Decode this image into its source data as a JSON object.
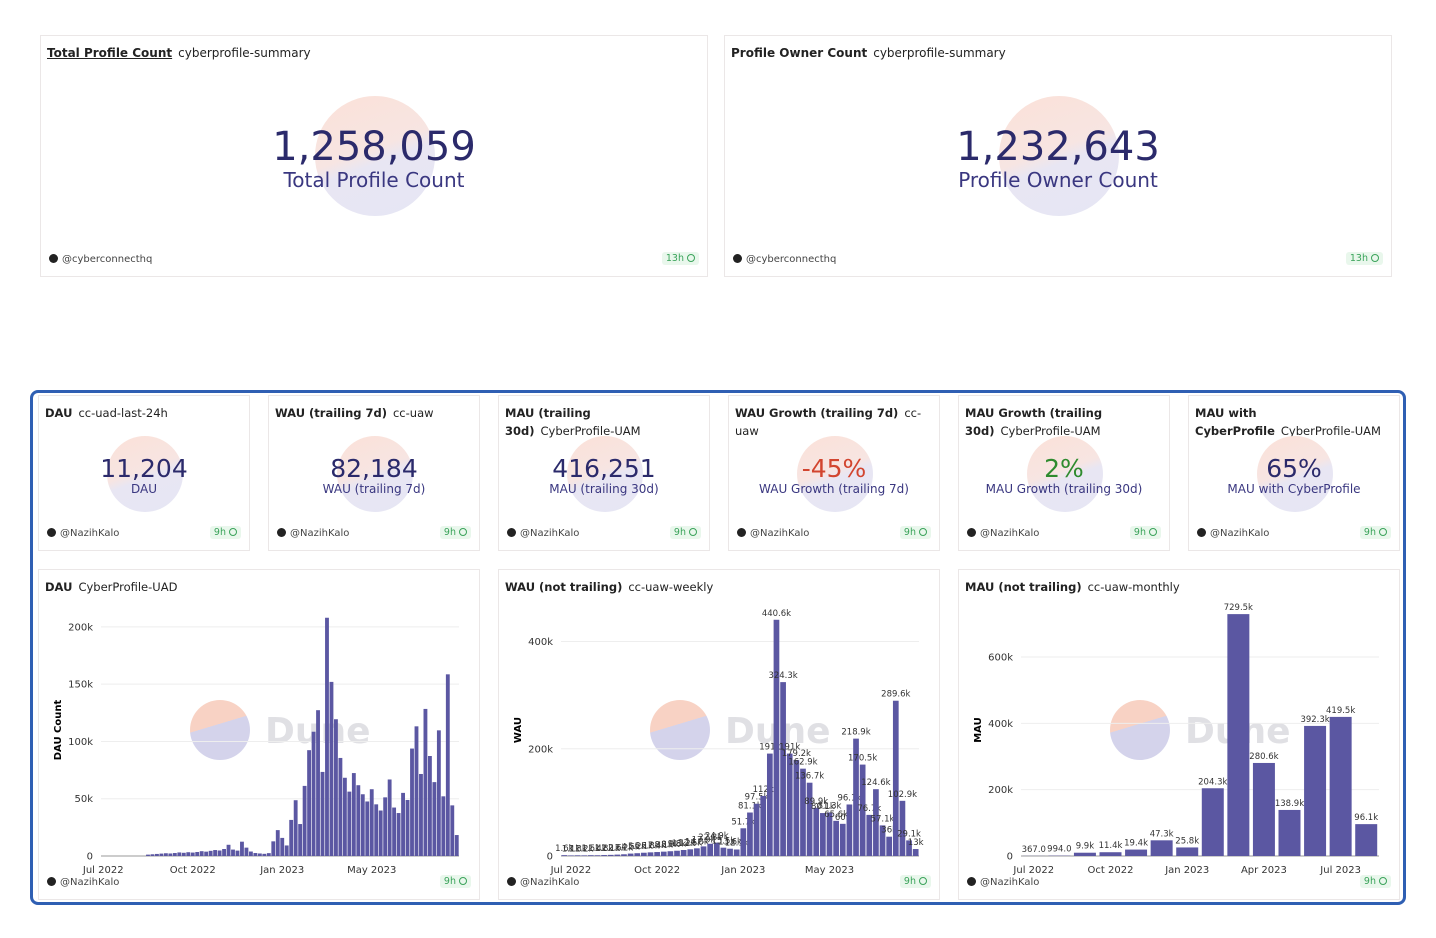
{
  "top_counters": [
    {
      "title": "Total Profile Count",
      "query": "cyberprofile-summary",
      "value": "1,258,059",
      "label": "Total Profile Count",
      "value_color": "#2b2a6b",
      "author": "@cyberconnecthq",
      "age": "13h"
    },
    {
      "title": "Profile Owner Count",
      "query": "cyberprofile-summary",
      "value": "1,232,643",
      "label": "Profile Owner Count",
      "value_color": "#2b2a6b",
      "author": "@cyberconnecthq",
      "age": "13h"
    }
  ],
  "counters": [
    {
      "title": "DAU",
      "query": "cc-uad-last-24h",
      "value": "11,204",
      "label": "DAU",
      "value_color": "#2b2a6b",
      "author": "@NazihKalo",
      "age": "9h"
    },
    {
      "title": "WAU (trailing 7d)",
      "query": "cc-uaw",
      "value": "82,184",
      "label": "WAU (trailing 7d)",
      "value_color": "#2b2a6b",
      "author": "@NazihKalo",
      "age": "9h"
    },
    {
      "title": "MAU (trailing 30d)",
      "query": "CyberProfile-UAM",
      "value": "416,251",
      "label": "MAU (trailing 30d)",
      "value_color": "#2b2a6b",
      "author": "@NazihKalo",
      "age": "9h"
    },
    {
      "title": "WAU Growth (trailing 7d)",
      "query": "cc-uaw",
      "value": "-45%",
      "label": "WAU Growth (trailing 7d)",
      "value_color": "#d2452f",
      "author": "@NazihKalo",
      "age": "9h"
    },
    {
      "title": "MAU Growth (trailing 30d)",
      "query": "CyberProfile-UAM",
      "value": "2%",
      "label": "MAU Growth (trailing 30d)",
      "value_color": "#2e8b2e",
      "author": "@NazihKalo",
      "age": "9h"
    },
    {
      "title": "MAU with CyberProfile",
      "query": "CyberProfile-UAM",
      "value": "65%",
      "label": "MAU with CyberProfile",
      "value_color": "#2b2a6b",
      "author": "@NazihKalo",
      "age": "9h"
    }
  ],
  "watermark": "Dune",
  "chart_data": [
    {
      "type": "bar",
      "title": "DAU",
      "query": "CyberProfile-UAD",
      "y_label": "DAU Count",
      "color": "#5b57a2",
      "author": "@NazihKalo",
      "age": "9h",
      "categories": [
        "Jul 2022",
        null,
        null,
        null,
        null,
        null,
        null,
        null,
        null,
        null,
        null,
        null,
        null,
        null,
        null,
        null,
        null,
        null,
        null,
        null,
        "Oct 2022",
        null,
        null,
        null,
        null,
        null,
        null,
        null,
        null,
        null,
        null,
        null,
        null,
        null,
        null,
        null,
        null,
        null,
        null,
        null,
        "Jan 2023",
        null,
        null,
        null,
        null,
        null,
        null,
        null,
        null,
        null,
        null,
        null,
        null,
        null,
        null,
        null,
        null,
        null,
        null,
        null,
        "May 2023",
        null,
        null,
        null,
        null,
        null,
        null,
        null,
        null,
        null,
        null,
        null,
        null,
        null,
        null,
        null,
        null,
        null,
        null,
        null
      ],
      "values": [
        0,
        0,
        0,
        0,
        0,
        0,
        0,
        0,
        0,
        0,
        1200,
        1500,
        1800,
        2100,
        2400,
        2200,
        2600,
        3100,
        2800,
        3300,
        3000,
        3500,
        4200,
        3800,
        4500,
        5200,
        4800,
        6100,
        9800,
        5600,
        4700,
        12500,
        7300,
        3900,
        2600,
        2200,
        1900,
        2500,
        12800,
        22600,
        15800,
        9200,
        31500,
        48700,
        27900,
        61200,
        92400,
        108500,
        127300,
        73400,
        208000,
        152000,
        119400,
        85600,
        68300,
        56200,
        72400,
        61800,
        53900,
        47600,
        58300,
        45100,
        39700,
        51200,
        66800,
        42300,
        37500,
        55100,
        48900,
        93800,
        113200,
        71600,
        128400,
        87300,
        64500,
        109700,
        52100,
        158600,
        44200,
        18300
      ],
      "ylim": [
        0,
        220000
      ],
      "yticks": [
        0,
        {
          "value": 50000,
          "label": "50k"
        },
        {
          "value": 100000,
          "label": "100k"
        },
        {
          "value": 150000,
          "label": "150k"
        },
        {
          "value": 200000,
          "label": "200k"
        }
      ]
    },
    {
      "type": "bar",
      "title": "WAU (not trailing)",
      "query": "cc-uaw-weekly",
      "y_label": "WAU",
      "color": "#5b57a2",
      "author": "@NazihKalo",
      "age": "9h",
      "categories": [
        null,
        "Jul 2022",
        null,
        null,
        null,
        null,
        null,
        null,
        null,
        null,
        null,
        null,
        null,
        null,
        "Oct 2022",
        null,
        null,
        null,
        null,
        null,
        null,
        null,
        null,
        null,
        null,
        null,
        null,
        "Jan 2023",
        null,
        null,
        null,
        null,
        null,
        null,
        null,
        null,
        null,
        null,
        null,
        null,
        "May 2023",
        null,
        null,
        null,
        null,
        null,
        null,
        null,
        null,
        null,
        null,
        null,
        null,
        null
      ],
      "values": [
        1600,
        1100,
        1300,
        1200,
        1500,
        1400,
        1800,
        2100,
        2600,
        3200,
        4500,
        5200,
        6100,
        6800,
        7400,
        8100,
        8900,
        9800,
        11200,
        12500,
        14300,
        17900,
        22800,
        24900,
        15500,
        13600,
        12100,
        51700,
        81100,
        97500,
        112000,
        191000,
        440600,
        324300,
        191000,
        179200,
        162900,
        136700,
        89900,
        80100,
        81300,
        65600,
        60000,
        96100,
        218900,
        170500,
        76700,
        124600,
        57100,
        36000,
        289600,
        102900,
        29100,
        13000
      ],
      "value_labels": [
        "1.6k",
        "1.1k",
        "1.3k",
        "1.2k",
        "1.5k",
        "1.4k",
        "1.8k",
        "2.1k",
        "2.6k",
        "3.2k",
        "4.5k",
        "5.2k",
        "6.1k",
        "6.8k",
        "7.4k",
        "8.1k",
        "8.9k",
        "9.8k",
        "11.2k",
        "12.5k",
        "14.3k",
        "17.9k",
        "22.8k",
        "24.9k",
        "15.5k",
        "13.6k",
        "12.1k",
        "51.7k",
        "81.1k",
        "97.5k",
        "112k",
        "191k",
        "440.6k",
        "324.3k",
        "191k",
        "179.2k",
        "162.9k",
        "136.7k",
        "89.9k",
        "80.1k",
        "81.3k",
        "65.6k",
        "60k",
        "96.1k",
        "218.9k",
        "170.5k",
        "76.7k",
        "124.6k",
        "57.1k",
        "36k",
        "289.6k",
        "102.9k",
        "29.1k",
        "13k"
      ],
      "ylim": [
        0,
        470000
      ],
      "yticks": [
        0,
        {
          "value": 200000,
          "label": "200k"
        },
        {
          "value": 400000,
          "label": "400k"
        }
      ]
    },
    {
      "type": "bar",
      "title": "MAU (not trailing)",
      "query": "cc-uaw-monthly",
      "y_label": "MAU",
      "color": "#5b57a2",
      "author": "@NazihKalo",
      "age": "9h",
      "categories": [
        "Jul 2022",
        null,
        null,
        "Oct 2022",
        null,
        null,
        "Jan 2023",
        null,
        null,
        "Apr 2023",
        null,
        null,
        "Jul 2023",
        null
      ],
      "values": [
        367,
        994,
        9900,
        11400,
        19400,
        47300,
        25800,
        204300,
        729500,
        280600,
        138900,
        392300,
        419500,
        96100
      ],
      "value_labels": [
        "367.0",
        "994.0",
        "9.9k",
        "11.4k",
        "19.4k",
        "47.3k",
        "25.8k",
        "204.3k",
        "729.5k",
        "280.6k",
        "138.9k",
        "392.3k",
        "419.5k",
        "96.1k"
      ],
      "ylim": [
        0,
        760000
      ],
      "yticks": [
        0,
        {
          "value": 200000,
          "label": "200k"
        },
        {
          "value": 400000,
          "label": "400k"
        },
        {
          "value": 600000,
          "label": "600k"
        }
      ]
    }
  ]
}
